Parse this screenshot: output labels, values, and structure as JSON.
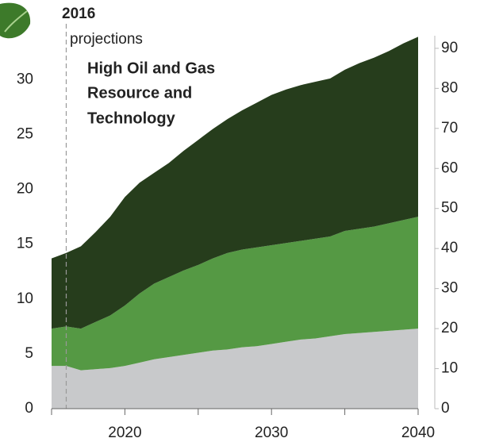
{
  "chart_data": {
    "type": "stacked_area",
    "annotations": [
      "High Oil and Gas",
      "Resource and",
      "Technology"
    ],
    "marker_label": "2016",
    "marker_x": 2016,
    "marker_text": "projections",
    "x": [
      2015,
      2016,
      2017,
      2018,
      2019,
      2020,
      2021,
      2022,
      2023,
      2024,
      2025,
      2026,
      2027,
      2028,
      2029,
      2030,
      2031,
      2032,
      2033,
      2034,
      2035,
      2036,
      2037,
      2038,
      2039,
      2040
    ],
    "series": [
      {
        "color": "#c8c9cb",
        "values": [
          3.9,
          3.9,
          3.5,
          3.6,
          3.7,
          3.9,
          4.2,
          4.5,
          4.7,
          4.9,
          5.1,
          5.3,
          5.4,
          5.6,
          5.7,
          5.9,
          6.1,
          6.3,
          6.4,
          6.6,
          6.8,
          6.9,
          7.0,
          7.1,
          7.2,
          7.3
        ]
      },
      {
        "color": "#559944",
        "values": [
          3.4,
          3.6,
          3.8,
          4.3,
          4.8,
          5.5,
          6.3,
          6.9,
          7.3,
          7.7,
          8.0,
          8.4,
          8.8,
          8.9,
          9.0,
          9.0,
          9.0,
          9.0,
          9.1,
          9.1,
          9.4,
          9.5,
          9.6,
          9.8,
          10.0,
          10.2
        ]
      },
      {
        "color": "#263d1c",
        "values": [
          6.4,
          6.7,
          7.5,
          8.2,
          9.0,
          9.9,
          10.1,
          10.1,
          10.4,
          10.9,
          11.4,
          11.8,
          12.2,
          12.7,
          13.2,
          13.7,
          14.0,
          14.2,
          14.3,
          14.4,
          14.7,
          15.1,
          15.4,
          15.7,
          16.1,
          16.4
        ]
      }
    ],
    "xlim": [
      2015,
      2040
    ],
    "xticks": [
      2020,
      2030,
      2040
    ],
    "xticks_minor": [
      2015,
      2025,
      2035
    ],
    "ylim": [
      0,
      34
    ],
    "yticks": [
      0,
      5,
      10,
      15,
      20,
      25,
      30
    ],
    "y2lim": [
      0,
      93.15
    ],
    "y2ticks": [
      0,
      10,
      20,
      30,
      40,
      50,
      60,
      70,
      80,
      90
    ]
  }
}
